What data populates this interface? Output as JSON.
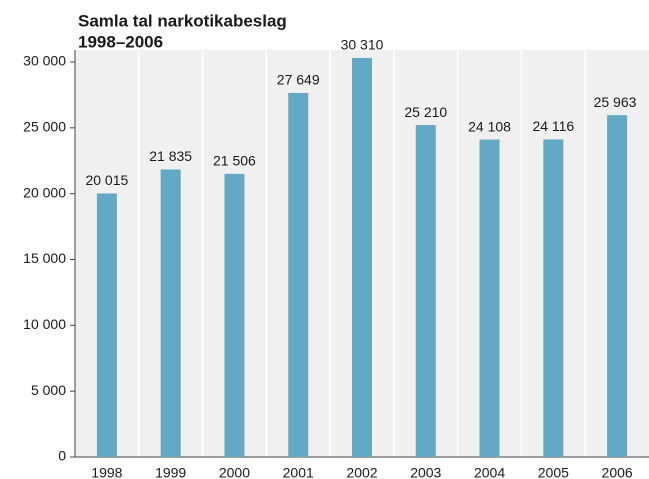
{
  "chart_data": {
    "type": "bar",
    "title": "Samla tal narkotikabeslag",
    "subtitle": "1998–2006",
    "categories": [
      "1998",
      "1999",
      "2000",
      "2001",
      "2002",
      "2003",
      "2004",
      "2005",
      "2006"
    ],
    "values": [
      20015,
      21835,
      21506,
      27649,
      30310,
      25210,
      24108,
      24116,
      25963
    ],
    "value_labels": [
      "20 015",
      "21 835",
      "21 506",
      "27 649",
      "30 310",
      "25 210",
      "24 108",
      "24 116",
      "25 963"
    ],
    "color": "#62a9c5",
    "ylim": [
      0,
      30000
    ],
    "yticks": [
      0,
      {
        "value": 5000,
        "label": "5 000"
      },
      {
        "value": 10000,
        "label": "10 000"
      },
      {
        "value": 15000,
        "label": "15 000"
      },
      {
        "value": 20000,
        "label": "20 000"
      },
      {
        "value": 25000,
        "label": "25 000"
      },
      {
        "value": 30000,
        "label": "30 000"
      }
    ]
  }
}
